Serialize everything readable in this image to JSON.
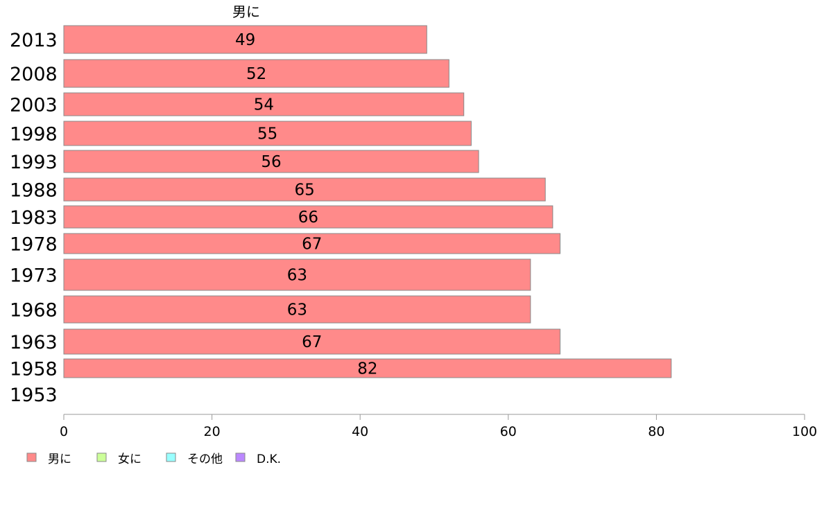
{
  "chart_data": {
    "type": "bar",
    "orientation": "horizontal",
    "series_title": "男に",
    "categories": [
      "2013",
      "2008",
      "2003",
      "1998",
      "1993",
      "1988",
      "1983",
      "1978",
      "1973",
      "1968",
      "1963",
      "1958",
      "1953"
    ],
    "series": [
      {
        "name": "男に",
        "values": [
          49,
          52,
          54,
          55,
          56,
          65,
          66,
          67,
          63,
          63,
          67,
          82,
          null
        ],
        "color": "#ff8a8a"
      }
    ],
    "xlim": [
      0,
      100
    ],
    "xticks": [
      0,
      20,
      40,
      60,
      80,
      100
    ],
    "grid": false,
    "legend": {
      "placement": "bottom-left",
      "items": [
        {
          "label": "男に",
          "color": "#ff8a8a"
        },
        {
          "label": "女に",
          "color": "#ccff99"
        },
        {
          "label": "その他",
          "color": "#99ffff"
        },
        {
          "label": "D.K.",
          "color": "#bb88ff"
        }
      ]
    }
  }
}
